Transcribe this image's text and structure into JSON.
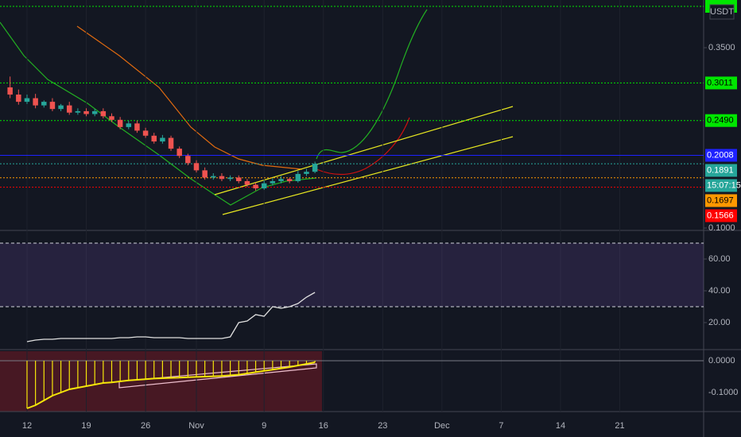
{
  "chart_data": {
    "type": "candlestick",
    "currency": "USDT",
    "open": [
      0.295,
      0.285,
      0.275,
      0.28,
      0.27,
      0.275,
      0.265,
      0.27,
      0.26,
      0.262,
      0.258,
      0.262,
      0.255,
      0.25,
      0.24,
      0.245,
      0.235,
      0.228,
      0.22,
      0.225,
      0.21,
      0.2,
      0.19,
      0.18,
      0.17,
      0.172,
      0.168,
      0.17,
      0.165,
      0.16,
      0.155,
      0.162,
      0.165,
      0.168,
      0.165,
      0.175,
      0.178
    ],
    "close": [
      0.285,
      0.275,
      0.28,
      0.27,
      0.275,
      0.265,
      0.27,
      0.26,
      0.262,
      0.258,
      0.262,
      0.255,
      0.25,
      0.24,
      0.245,
      0.235,
      0.228,
      0.22,
      0.225,
      0.21,
      0.2,
      0.19,
      0.18,
      0.17,
      0.172,
      0.168,
      0.17,
      0.165,
      0.16,
      0.155,
      0.162,
      0.165,
      0.168,
      0.165,
      0.175,
      0.178,
      0.1891
    ],
    "high": [
      0.31,
      0.292,
      0.285,
      0.286,
      0.277,
      0.28,
      0.272,
      0.275,
      0.266,
      0.266,
      0.265,
      0.266,
      0.259,
      0.254,
      0.249,
      0.249,
      0.239,
      0.232,
      0.229,
      0.228,
      0.213,
      0.203,
      0.194,
      0.184,
      0.176,
      0.176,
      0.173,
      0.173,
      0.168,
      0.163,
      0.166,
      0.169,
      0.172,
      0.17,
      0.179,
      0.182,
      0.192
    ],
    "low": [
      0.28,
      0.271,
      0.272,
      0.266,
      0.267,
      0.262,
      0.262,
      0.257,
      0.257,
      0.255,
      0.255,
      0.252,
      0.247,
      0.237,
      0.237,
      0.232,
      0.225,
      0.217,
      0.217,
      0.207,
      0.197,
      0.187,
      0.177,
      0.167,
      0.167,
      0.165,
      0.165,
      0.162,
      0.157,
      0.152,
      0.153,
      0.159,
      0.162,
      0.162,
      0.163,
      0.172,
      0.176
    ],
    "ylim": [
      0.0967,
      0.4161
    ],
    "yticks": [
      {
        "value": 0.35,
        "label": "0.3500"
      },
      {
        "value": 0.1,
        "label": "0.1000"
      }
    ],
    "xlim": [
      -1.19,
      81.9
    ],
    "xticks": [
      {
        "value": 2,
        "label": "12"
      },
      {
        "value": 9,
        "label": "19"
      },
      {
        "value": 16,
        "label": "26"
      },
      {
        "value": 22,
        "label": "Nov"
      },
      {
        "value": 30,
        "label": "9"
      },
      {
        "value": 37,
        "label": "16"
      },
      {
        "value": 44,
        "label": "23"
      },
      {
        "value": 51,
        "label": "Dec"
      },
      {
        "value": 58,
        "label": "7"
      },
      {
        "value": 65,
        "label": "14"
      },
      {
        "value": 72,
        "label": "21"
      }
    ],
    "levels": [
      {
        "value": 0.3011,
        "label": "0.3011",
        "color": "#00e600",
        "text_color": "#000000",
        "dash": true
      },
      {
        "value": 0.249,
        "label": "0.2490",
        "color": "#00e600",
        "text_color": "#000000",
        "dash": true
      },
      {
        "value": 0.2008,
        "label": "0.2008",
        "color": "#1e22ff",
        "text_color": "#ffffff",
        "dash": false
      },
      {
        "value": 0.1891,
        "label": "0.1891",
        "color": "#26a69a",
        "text_color": "#ffffff",
        "dash": true,
        "countdown": "15:07:15"
      },
      {
        "value": 0.1697,
        "label": "0.1697",
        "color": "#ff9800",
        "text_color": "#000000",
        "dash": true
      },
      {
        "value": 0.1566,
        "label": "0.1566",
        "color": "#ff0000",
        "text_color": "#ffffff",
        "dash": true
      }
    ],
    "rsi": {
      "values": [
        null,
        null,
        8,
        9,
        9.5,
        9.5,
        10,
        10,
        10,
        10,
        10,
        10,
        10,
        10.5,
        10.5,
        11,
        11,
        10.5,
        10.5,
        10.5,
        10.5,
        10,
        10,
        10,
        10,
        10,
        11,
        20,
        21,
        25,
        24,
        30,
        29,
        30,
        32,
        36,
        39
      ],
      "ylim": [
        3,
        77
      ],
      "yticks": [
        {
          "value": 60,
          "label": "60.00"
        },
        {
          "value": 40,
          "label": "40.00"
        },
        {
          "value": 20,
          "label": "20.00"
        }
      ],
      "bands": [
        70,
        30
      ]
    },
    "histogram": {
      "values": [
        null,
        null,
        -0.15,
        -0.14,
        -0.125,
        -0.11,
        -0.1,
        -0.09,
        -0.085,
        -0.08,
        -0.075,
        -0.07,
        -0.068,
        -0.065,
        -0.062,
        -0.06,
        -0.058,
        -0.056,
        -0.055,
        -0.054,
        -0.053,
        -0.052,
        -0.051,
        -0.05,
        -0.049,
        -0.048,
        -0.046,
        -0.044,
        -0.04,
        -0.036,
        -0.032,
        -0.028,
        -0.024,
        -0.02,
        -0.015,
        -0.01,
        -0.005
      ],
      "ylim": [
        -0.1525,
        0.03
      ],
      "yticks": [
        {
          "value": 0,
          "label": "0.0000"
        },
        {
          "value": -0.1,
          "label": "-0.1000"
        }
      ]
    }
  }
}
